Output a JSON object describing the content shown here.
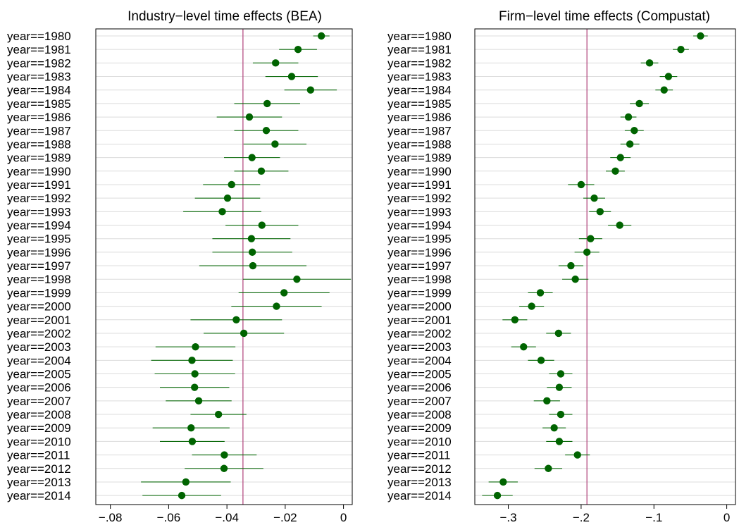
{
  "colors": {
    "marker": "#006400",
    "ci_line": "#0b6a0b",
    "reference_line": "#b0417a",
    "grid": "#dcdcdc"
  },
  "chart_data": [
    {
      "type": "scatter",
      "subtype": "coefficient-plot",
      "title": "Industry−level time effects (BEA)",
      "xlim": [
        -0.085,
        0.003
      ],
      "xticks": [
        -0.08,
        -0.06,
        -0.04,
        -0.02,
        0
      ],
      "xtick_labels": [
        "−.08",
        "−.06",
        "−.04",
        "−.02",
        "0"
      ],
      "reference_x": -0.0345,
      "grid": true,
      "categories": [
        "year==1980",
        "year==1981",
        "year==1982",
        "year==1983",
        "year==1984",
        "year==1985",
        "year==1986",
        "year==1987",
        "year==1988",
        "year==1989",
        "year==1990",
        "year==1991",
        "year==1992",
        "year==1993",
        "year==1994",
        "year==1995",
        "year==1996",
        "year==1997",
        "year==1998",
        "year==1999",
        "year==2000",
        "year==2001",
        "year==2002",
        "year==2003",
        "year==2004",
        "year==2005",
        "year==2006",
        "year==2007",
        "year==2008",
        "year==2009",
        "year==2010",
        "year==2011",
        "year==2012",
        "year==2013",
        "year==2014"
      ],
      "estimates": [
        -0.0076,
        -0.0156,
        -0.0233,
        -0.0178,
        -0.0113,
        -0.0262,
        -0.0323,
        -0.0265,
        -0.0235,
        -0.0314,
        -0.0282,
        -0.0384,
        -0.0398,
        -0.0416,
        -0.028,
        -0.0316,
        -0.0313,
        -0.0311,
        -0.016,
        -0.0204,
        -0.023,
        -0.0368,
        -0.0342,
        -0.0508,
        -0.052,
        -0.051,
        -0.0511,
        -0.0497,
        -0.0429,
        -0.0523,
        -0.0519,
        -0.0409,
        -0.041,
        -0.0541,
        -0.0555
      ],
      "ci_low": [
        -0.0104,
        -0.0221,
        -0.0311,
        -0.0268,
        -0.0203,
        -0.0375,
        -0.0435,
        -0.0375,
        -0.0343,
        -0.041,
        -0.0375,
        -0.0482,
        -0.051,
        -0.055,
        -0.0405,
        -0.045,
        -0.045,
        -0.0495,
        -0.0345,
        -0.036,
        -0.0385,
        -0.0525,
        -0.048,
        -0.0645,
        -0.066,
        -0.0648,
        -0.063,
        -0.061,
        -0.0525,
        -0.0655,
        -0.063,
        -0.052,
        -0.0545,
        -0.0695,
        -0.069
      ],
      "ci_high": [
        -0.0048,
        -0.0091,
        -0.0155,
        -0.0088,
        -0.0023,
        -0.0149,
        -0.0211,
        -0.0155,
        -0.0127,
        -0.0218,
        -0.0189,
        -0.0286,
        -0.0286,
        -0.0282,
        -0.0155,
        -0.0182,
        -0.0176,
        -0.0127,
        0.0025,
        -0.0048,
        -0.0075,
        -0.0211,
        -0.0204,
        -0.0371,
        -0.038,
        -0.0372,
        -0.0392,
        -0.0384,
        -0.0333,
        -0.0391,
        -0.0408,
        -0.0298,
        -0.0275,
        -0.0387,
        -0.042
      ]
    },
    {
      "type": "scatter",
      "subtype": "coefficient-plot",
      "title": "Firm−level time effects (Compustat)",
      "xlim": [
        -0.346,
        0.012
      ],
      "xticks": [
        -0.3,
        -0.2,
        -0.1,
        0
      ],
      "xtick_labels": [
        "−.3",
        "−.2",
        "−.1",
        "0"
      ],
      "reference_x": -0.192,
      "grid": true,
      "categories": [
        "year==1980",
        "year==1981",
        "year==1982",
        "year==1983",
        "year==1984",
        "year==1985",
        "year==1986",
        "year==1987",
        "year==1988",
        "year==1989",
        "year==1990",
        "year==1991",
        "year==1992",
        "year==1993",
        "year==1994",
        "year==1995",
        "year==1996",
        "year==1997",
        "year==1998",
        "year==1999",
        "year==2000",
        "year==2001",
        "year==2002",
        "year==2003",
        "year==2004",
        "year==2005",
        "year==2006",
        "year==2007",
        "year==2008",
        "year==2009",
        "year==2010",
        "year==2011",
        "year==2012",
        "year==2013",
        "year==2014"
      ],
      "estimates": [
        -0.036,
        -0.063,
        -0.106,
        -0.08,
        -0.086,
        -0.12,
        -0.135,
        -0.127,
        -0.133,
        -0.146,
        -0.153,
        -0.2,
        -0.182,
        -0.174,
        -0.147,
        -0.187,
        -0.192,
        -0.214,
        -0.208,
        -0.256,
        -0.268,
        -0.291,
        -0.231,
        -0.279,
        -0.255,
        -0.228,
        -0.23,
        -0.247,
        -0.228,
        -0.237,
        -0.23,
        -0.205,
        -0.245,
        -0.307,
        -0.315
      ],
      "ci_low": [
        -0.046,
        -0.074,
        -0.118,
        -0.092,
        -0.098,
        -0.133,
        -0.146,
        -0.14,
        -0.146,
        -0.16,
        -0.166,
        -0.218,
        -0.197,
        -0.189,
        -0.163,
        -0.203,
        -0.209,
        -0.231,
        -0.226,
        -0.273,
        -0.285,
        -0.308,
        -0.248,
        -0.296,
        -0.273,
        -0.244,
        -0.247,
        -0.265,
        -0.244,
        -0.253,
        -0.248,
        -0.222,
        -0.264,
        -0.327,
        -0.336
      ],
      "ci_high": [
        -0.026,
        -0.052,
        -0.094,
        -0.068,
        -0.074,
        -0.107,
        -0.124,
        -0.114,
        -0.12,
        -0.132,
        -0.14,
        -0.182,
        -0.167,
        -0.159,
        -0.131,
        -0.171,
        -0.175,
        -0.197,
        -0.19,
        -0.239,
        -0.251,
        -0.274,
        -0.214,
        -0.262,
        -0.237,
        -0.212,
        -0.213,
        -0.229,
        -0.212,
        -0.221,
        -0.212,
        -0.188,
        -0.226,
        -0.287,
        -0.294
      ]
    }
  ]
}
